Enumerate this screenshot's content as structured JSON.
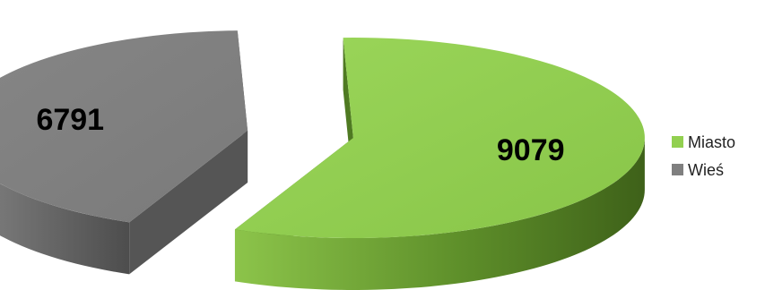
{
  "chart_data": {
    "type": "pie",
    "title": "",
    "exploded": true,
    "three_d": true,
    "legend_position": "right",
    "data_labels_shown": true,
    "slices": [
      {
        "name": "Miasto",
        "value": 9079,
        "label": "9079",
        "color": "#92D050",
        "side_color": "#4F7A22"
      },
      {
        "name": "Wieś",
        "value": 6791,
        "label": "6791",
        "color": "#7F7F7F",
        "side_color": "#555555"
      }
    ]
  }
}
